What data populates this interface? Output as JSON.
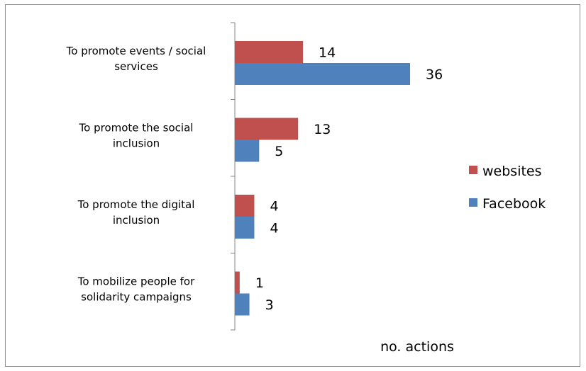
{
  "chart_data": {
    "type": "bar",
    "orientation": "horizontal",
    "categories": [
      [
        "To promote events / social",
        "services"
      ],
      [
        "To promote the social",
        "inclusion"
      ],
      [
        "To promote the digital",
        "inclusion"
      ],
      [
        "To mobilize people for",
        "solidarity campaigns"
      ]
    ],
    "series": [
      {
        "name": "websites",
        "color": "#c0504d",
        "values": [
          14,
          13,
          4,
          1
        ],
        "labels": [
          "14",
          "13",
          "4",
          "1"
        ]
      },
      {
        "name": "Facebook",
        "color": "#4f81bd",
        "values": [
          36,
          5,
          4,
          3
        ],
        "labels": [
          "36",
          "5",
          "4",
          "3"
        ]
      }
    ],
    "xlabel": "no. actions",
    "xlim": [
      0,
      40
    ],
    "grid": false,
    "legend_position": "right"
  }
}
